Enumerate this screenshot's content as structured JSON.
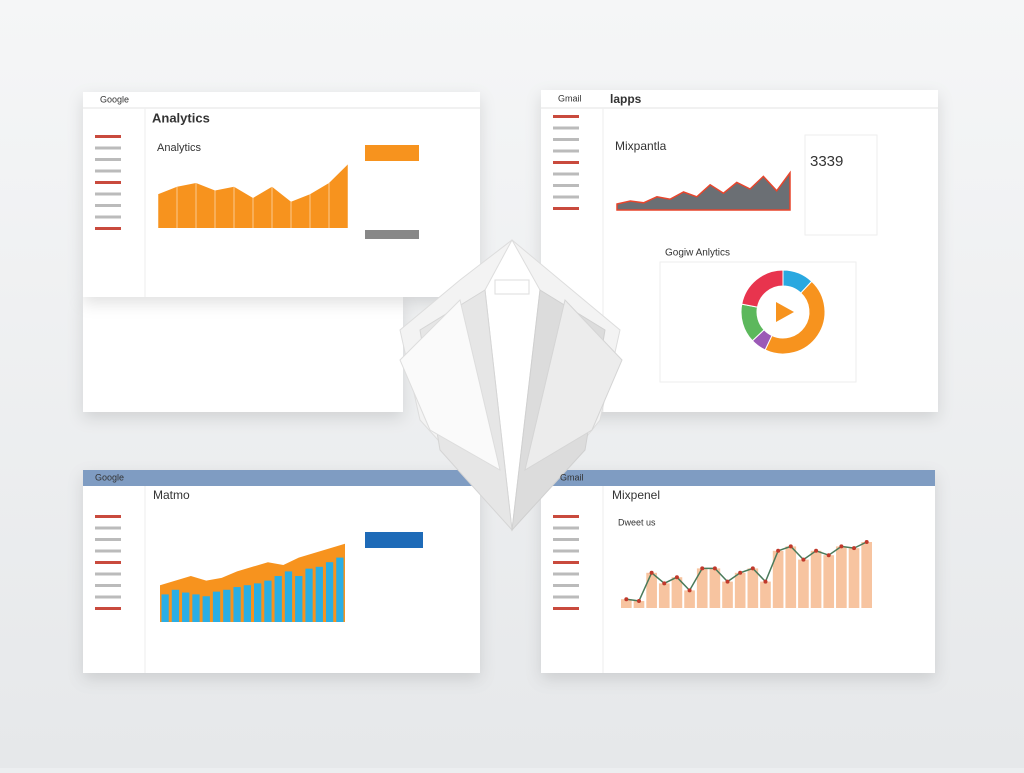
{
  "windows": [
    {
      "brand": "Google",
      "title": "Analytics",
      "chart_title": "Analytics",
      "chart": {
        "ylim": [
          0,
          100
        ],
        "values": [
          45,
          55,
          60,
          50,
          55,
          40,
          55,
          35,
          45,
          60,
          85
        ],
        "color": "#f7931e"
      }
    },
    {
      "brand": "Gmail",
      "title": "lapps",
      "chart_title": "Mixpantla",
      "kpi": "3339",
      "chart": {
        "ylim": [
          0,
          100
        ],
        "values": [
          10,
          15,
          12,
          22,
          18,
          30,
          22,
          42,
          28,
          46,
          35,
          56,
          32,
          62
        ],
        "color": "#6b6f74",
        "line_color": "#e8452c"
      },
      "pie_title": "Gogiw Anlytics",
      "pie": {
        "values": [
          12,
          45,
          6,
          15,
          22
        ],
        "colors": [
          "#29a8e0",
          "#f7931e",
          "#9b59b6",
          "#5cb85c",
          "#e8344e"
        ]
      }
    },
    {
      "brand": "Google",
      "title": "Matmo",
      "chart": {
        "ylim": [
          0,
          100
        ],
        "bars": [
          30,
          35,
          32,
          30,
          28,
          33,
          35,
          38,
          40,
          42,
          45,
          50,
          55,
          50,
          58,
          60,
          65,
          70
        ],
        "area": [
          40,
          45,
          50,
          45,
          48,
          55,
          60,
          65,
          62,
          70,
          75,
          80,
          85
        ],
        "bar_color": "#2aaee4",
        "area_color": "#f7931e"
      }
    },
    {
      "brand": "Gmail",
      "title": "Mixpenel",
      "chart_title": "Dweet us",
      "chart": {
        "ylim": [
          0,
          100
        ],
        "values": [
          10,
          8,
          40,
          28,
          35,
          20,
          45,
          45,
          30,
          40,
          45,
          30,
          65,
          70,
          55,
          65,
          60,
          70,
          68,
          75
        ],
        "color": "#f7c4a0",
        "line_color": "#4a7a5a"
      }
    }
  ]
}
